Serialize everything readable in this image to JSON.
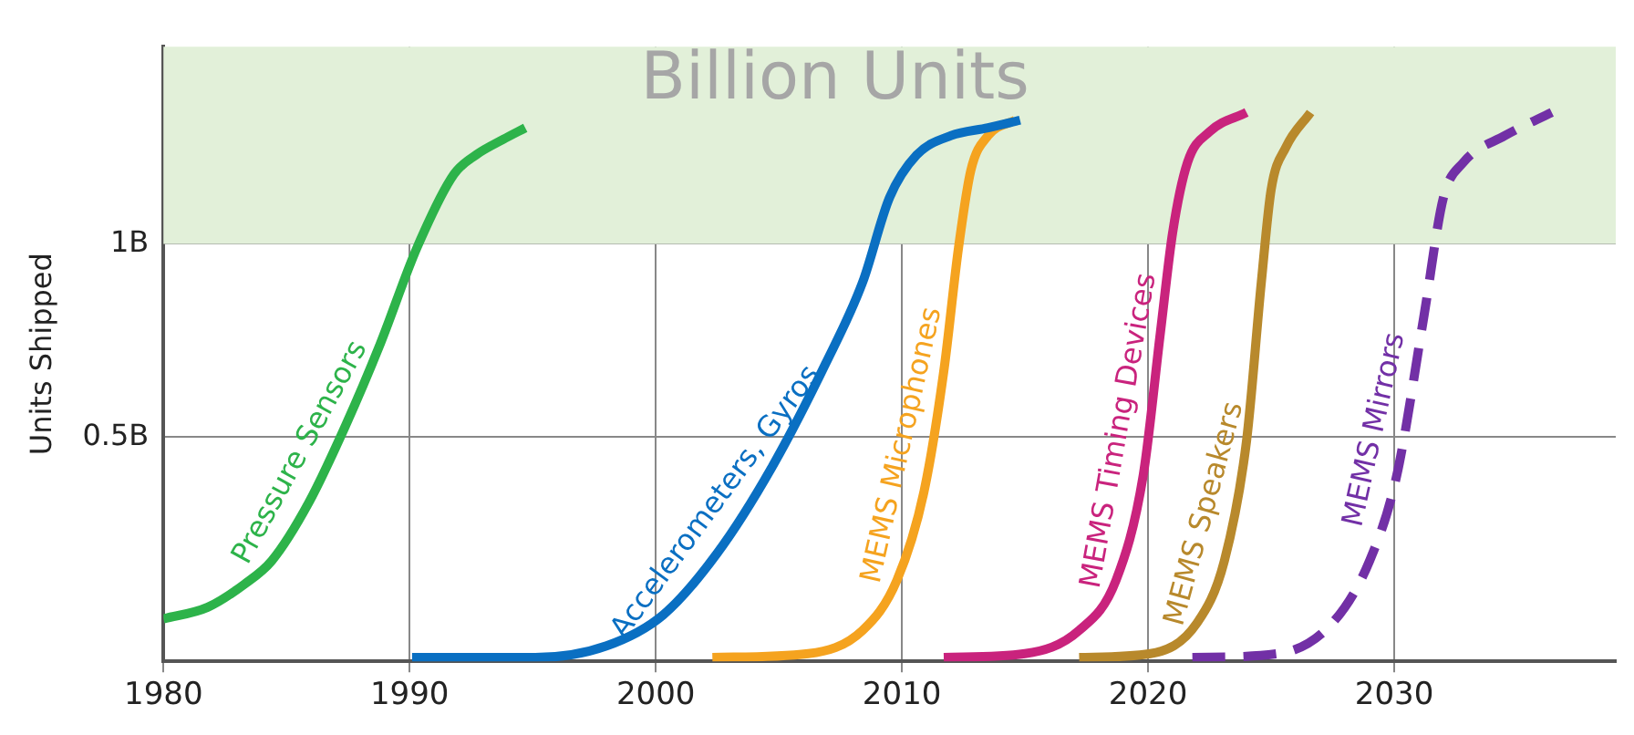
{
  "chart_data": {
    "type": "line",
    "ylabel": "Units Shipped",
    "xlim": [
      1980,
      2039
    ],
    "xticks": [
      1980,
      1990,
      2000,
      2010,
      2020,
      2030
    ],
    "ylim": [
      -0.08,
      1.51
    ],
    "yticks": [
      {
        "value": 0.5,
        "label": "0.5B"
      },
      {
        "value": 1,
        "label": "1B"
      }
    ],
    "grid": true,
    "legend": false,
    "marker": "none",
    "bands": [
      {
        "axis": "y",
        "from": 1,
        "to": 1.51,
        "label": "Billion Units",
        "color": "#e2f0d9"
      }
    ],
    "series": [
      {
        "name": "Pressure Sensors",
        "color": "#2db34a",
        "line_style": "solid",
        "x": [
          1980,
          1981.8,
          1983.3,
          1984.4,
          1985.9,
          1987.4,
          1988.8,
          1990.3,
          1991.8,
          1992.7,
          1993.8,
          1994.7
        ],
        "values": [
          0.03,
          0.06,
          0.12,
          0.18,
          0.33,
          0.53,
          0.74,
          0.99,
          1.18,
          1.23,
          1.27,
          1.3
        ]
      },
      {
        "name": "Accelerometers, Gyros",
        "color": "#0a6fc2",
        "line_style": "solid",
        "x": [
          1990.1,
          1995.1,
          1998,
          2000.3,
          2002.5,
          2004.7,
          2006.9,
          2008.4,
          2009.5,
          2010.6,
          2012,
          2013.5,
          2014.8
        ],
        "values": [
          -0.07,
          -0.07,
          -0.04,
          0.04,
          0.2,
          0.42,
          0.69,
          0.9,
          1.12,
          1.23,
          1.28,
          1.3,
          1.32
        ]
      },
      {
        "name": "MEMS Microphones",
        "color": "#f5a31f",
        "line_style": "solid",
        "x": [
          2002.3,
          2006.2,
          2008.4,
          2009.8,
          2010.9,
          2011.7,
          2012.3,
          2012.8,
          2013.5,
          2014.6
        ],
        "values": [
          -0.07,
          -0.06,
          0,
          0.13,
          0.36,
          0.67,
          0.99,
          1.19,
          1.28,
          1.32
        ]
      },
      {
        "name": "MEMS Timing Devices",
        "color": "#c9237d",
        "line_style": "solid",
        "x": [
          2011.7,
          2015,
          2017.2,
          2018.7,
          2019.8,
          2020.5,
          2021,
          2021.6,
          2022.5,
          2024
        ],
        "values": [
          -0.07,
          -0.06,
          0,
          0.13,
          0.4,
          0.77,
          1.03,
          1.21,
          1.29,
          1.34
        ]
      },
      {
        "name": "MEMS Speakers",
        "color": "#b8892c",
        "line_style": "solid",
        "x": [
          2017.2,
          2020.1,
          2022,
          2023.1,
          2024,
          2024.6,
          2025,
          2025.6,
          2026.6
        ],
        "values": [
          -0.07,
          -0.06,
          0.02,
          0.18,
          0.49,
          0.9,
          1.14,
          1.25,
          1.34
        ]
      },
      {
        "name": "MEMS Mirrors",
        "color": "#7230a6",
        "line_style": "dashed",
        "x": [
          2021.8,
          2025.3,
          2027.5,
          2029,
          2030.1,
          2031.2,
          2032,
          2032.8,
          2034.5,
          2036.4
        ],
        "values": [
          -0.07,
          -0.06,
          0.02,
          0.18,
          0.4,
          0.81,
          1.12,
          1.21,
          1.28,
          1.34
        ]
      }
    ]
  }
}
